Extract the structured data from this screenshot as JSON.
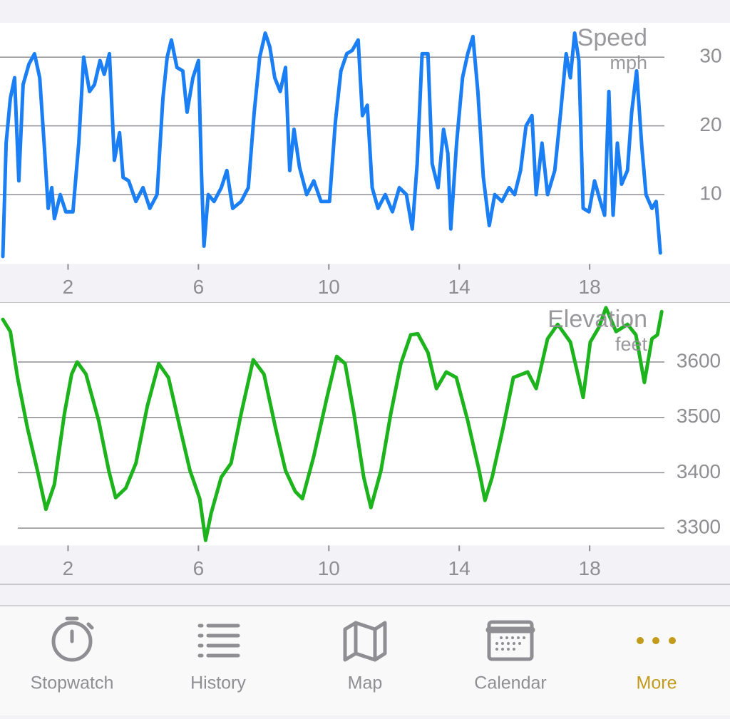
{
  "chart_data": [
    {
      "type": "line",
      "title": "Speed",
      "unit": "mph",
      "color": "#1a7ef5",
      "grid": true,
      "x": [
        0,
        0.1,
        0.23,
        0.36,
        0.49,
        0.62,
        0.8,
        0.97,
        1.13,
        1.28,
        1.39,
        1.5,
        1.58,
        1.76,
        1.93,
        2.15,
        2.33,
        2.48,
        2.66,
        2.81,
        2.98,
        3.11,
        3.27,
        3.42,
        3.58,
        3.69,
        3.86,
        4.08,
        4.3,
        4.51,
        4.73,
        4.91,
        5.04,
        5.17,
        5.34,
        5.52,
        5.65,
        5.83,
        6.0,
        6.09,
        6.17,
        6.3,
        6.48,
        6.7,
        6.87,
        7.05,
        7.31,
        7.53,
        7.71,
        7.88,
        8.05,
        8.19,
        8.34,
        8.51,
        8.67,
        8.8,
        8.93,
        9.1,
        9.32,
        9.54,
        9.76,
        10.02,
        10.2,
        10.37,
        10.55,
        10.72,
        10.9,
        11.03,
        11.18,
        11.33,
        11.51,
        11.73,
        11.95,
        12.16,
        12.38,
        12.56,
        12.71,
        12.86,
        13.04,
        13.17,
        13.35,
        13.52,
        13.65,
        13.74,
        13.92,
        14.1,
        14.26,
        14.42,
        14.57,
        14.74,
        14.92,
        15.09,
        15.31,
        15.53,
        15.7,
        15.88,
        16.05,
        16.23,
        16.36,
        16.54,
        16.71,
        16.93,
        17.1,
        17.28,
        17.41,
        17.54,
        17.67,
        17.8,
        17.98,
        18.15,
        18.33,
        18.46,
        18.59,
        18.72,
        18.85,
        18.98,
        19.16,
        19.29,
        19.44,
        19.6,
        19.73,
        19.91,
        20.04,
        20.17
      ],
      "values": [
        1,
        17.5,
        24,
        27,
        12,
        26,
        29,
        30.5,
        27,
        16.5,
        8,
        11,
        6.5,
        10,
        7.5,
        7.5,
        17.5,
        30,
        25,
        26,
        29.5,
        27.5,
        30.5,
        15,
        19,
        12.5,
        12,
        9,
        11,
        8,
        10,
        24,
        30,
        32.5,
        28.5,
        28,
        22,
        27,
        29.5,
        13.5,
        2.5,
        10,
        9,
        11,
        13.5,
        8,
        9,
        11,
        22,
        30,
        33.5,
        31.5,
        27,
        25,
        28.5,
        13.5,
        19.5,
        14,
        10,
        12,
        9,
        9,
        20.5,
        28,
        30.5,
        31,
        32.5,
        21.5,
        23,
        11,
        8,
        10,
        7.5,
        11,
        10,
        5,
        14.5,
        30.5,
        30.5,
        14.5,
        11,
        19.5,
        16,
        5,
        17.5,
        27,
        30.5,
        33,
        25,
        12.5,
        5.5,
        10,
        9,
        11,
        10,
        13.5,
        20,
        21.5,
        10,
        17.5,
        10,
        13.5,
        21.5,
        30.5,
        27,
        33.5,
        29.5,
        8,
        7.5,
        12,
        9,
        7,
        25,
        7,
        17.5,
        11.5,
        13.5,
        22,
        28,
        17,
        10,
        8,
        9,
        1.5
      ],
      "xlim": [
        0,
        20.25
      ],
      "xticks": [
        2,
        6,
        10,
        14,
        18
      ],
      "ylim": [
        0,
        35
      ],
      "yticks": [
        10,
        20,
        30
      ]
    },
    {
      "type": "line",
      "title": "Elevation",
      "unit": "feet",
      "color": "#1db31d",
      "grid": true,
      "x": [
        0,
        0.23,
        0.45,
        0.75,
        1.06,
        1.32,
        1.58,
        1.89,
        2.11,
        2.28,
        2.55,
        2.94,
        3.25,
        3.46,
        3.77,
        4.08,
        4.43,
        4.78,
        5.08,
        5.43,
        5.74,
        6.04,
        6.22,
        6.39,
        6.7,
        7.0,
        7.31,
        7.68,
        8.01,
        8.36,
        8.67,
        8.97,
        9.19,
        9.54,
        9.93,
        10.24,
        10.5,
        10.77,
        11.07,
        11.29,
        11.6,
        11.9,
        12.21,
        12.51,
        12.73,
        13.04,
        13.3,
        13.6,
        13.91,
        14.26,
        14.61,
        14.79,
        15.01,
        15.35,
        15.66,
        16.1,
        16.36,
        16.71,
        17.02,
        17.41,
        17.8,
        18.02,
        18.28,
        18.5,
        18.81,
        19.16,
        19.42,
        19.68,
        19.91,
        20.08,
        20.21
      ],
      "values": [
        3677,
        3655,
        3572,
        3482,
        3404,
        3334,
        3379,
        3507,
        3578,
        3600,
        3578,
        3494,
        3404,
        3355,
        3372,
        3417,
        3520,
        3597,
        3572,
        3482,
        3404,
        3353,
        3278,
        3327,
        3392,
        3417,
        3507,
        3604,
        3578,
        3482,
        3404,
        3366,
        3353,
        3430,
        3533,
        3610,
        3597,
        3507,
        3392,
        3337,
        3404,
        3507,
        3597,
        3649,
        3651,
        3617,
        3552,
        3582,
        3572,
        3494,
        3404,
        3350,
        3392,
        3482,
        3572,
        3582,
        3552,
        3642,
        3668,
        3636,
        3536,
        3636,
        3662,
        3698,
        3655,
        3668,
        3649,
        3563,
        3642,
        3649,
        3691
      ],
      "xlim": [
        0,
        20.25
      ],
      "xticks": [
        2,
        6,
        10,
        14,
        18
      ],
      "ylim": [
        3270,
        3700
      ],
      "yticks": [
        3300,
        3400,
        3500,
        3600
      ]
    }
  ],
  "tab_bar": {
    "items": [
      "Stopwatch",
      "History",
      "Map",
      "Calendar",
      "More"
    ],
    "selected": 4
  }
}
